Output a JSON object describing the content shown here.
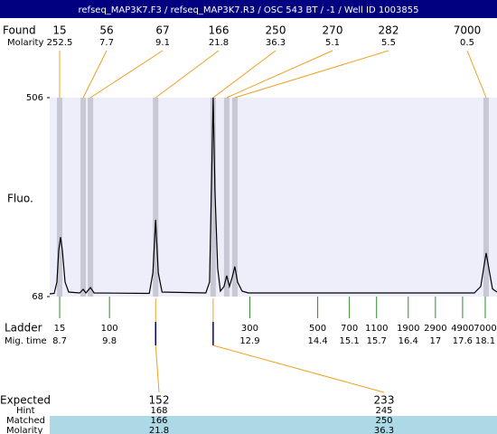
{
  "chart_data": {
    "type": "electropherogram",
    "title": "refseq_MAP3K7.F3 / refseq_MAP3K7.R3 / OSC 543 BT / -1 / Well ID 1003855",
    "y_label": "Fluo.",
    "ylim": [
      68,
      506
    ],
    "yticks": [
      68,
      506
    ],
    "xlim": [
      8.48,
      18.36
    ],
    "found": {
      "label": "Found",
      "molarity_label": "Molarity",
      "sizes": [
        15,
        56,
        67,
        166,
        250,
        270,
        282,
        7000
      ],
      "molarity": [
        252.5,
        7.7,
        9.1,
        21.8,
        36.3,
        5.1,
        5.5,
        0.5
      ],
      "mig_times": [
        8.7,
        9.22,
        9.38,
        10.82,
        12.09,
        12.39,
        12.57,
        18.12
      ]
    },
    "ladder": {
      "label": "Ladder",
      "mig_label": "Mig. time",
      "sizes": [
        15,
        100,
        300,
        500,
        700,
        1100,
        1900,
        2900,
        4900,
        7000
      ],
      "mig_times": [
        8.7,
        9.8,
        12.9,
        14.4,
        15.1,
        15.7,
        16.4,
        17,
        17.6,
        18.1
      ]
    },
    "expected": {
      "label": "Expected",
      "hint_label": "Hint",
      "matched_label": "Matched",
      "molarity_label": "Molarity",
      "sizes": [
        152,
        233
      ],
      "hint": [
        168,
        245
      ],
      "matched": [
        166,
        250
      ],
      "molarity": [
        21.8,
        36.3
      ]
    },
    "trace": {
      "color": "#000000",
      "x": [
        8.48,
        8.58,
        8.64,
        8.68,
        8.72,
        8.76,
        8.82,
        8.9,
        9.14,
        9.22,
        9.28,
        9.38,
        9.46,
        10.68,
        10.76,
        10.82,
        10.88,
        10.96,
        11.93,
        12.01,
        12.05,
        12.09,
        12.13,
        12.19,
        12.25,
        12.33,
        12.39,
        12.45,
        12.51,
        12.57,
        12.63,
        12.73,
        12.87,
        17.86,
        18.0,
        18.08,
        18.12,
        18.18,
        18.26,
        18.36
      ],
      "values": [
        74,
        75,
        100,
        170,
        199,
        170,
        100,
        78,
        76,
        84,
        76,
        88,
        76,
        75,
        120,
        237,
        120,
        78,
        76,
        100,
        300,
        506,
        300,
        130,
        80,
        90,
        114,
        90,
        110,
        134,
        100,
        80,
        76,
        76,
        90,
        140,
        164,
        130,
        85,
        78
      ]
    }
  }
}
